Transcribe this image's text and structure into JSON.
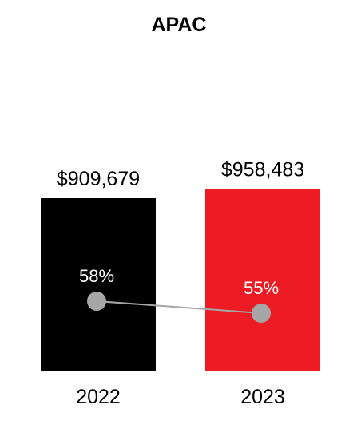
{
  "chart_data": {
    "type": "bar",
    "title": "APAC",
    "categories": [
      "2022",
      "2023"
    ],
    "series": [
      {
        "values": [
          909679,
          958483
        ],
        "value_labels": [
          "$909,679",
          "$958,483"
        ],
        "colors": [
          "#000000",
          "#ed1c24"
        ]
      },
      {
        "type": "line",
        "values": [
          58,
          55
        ],
        "value_labels": [
          "58%",
          "55%"
        ],
        "color": "#a6a6a6"
      }
    ]
  }
}
